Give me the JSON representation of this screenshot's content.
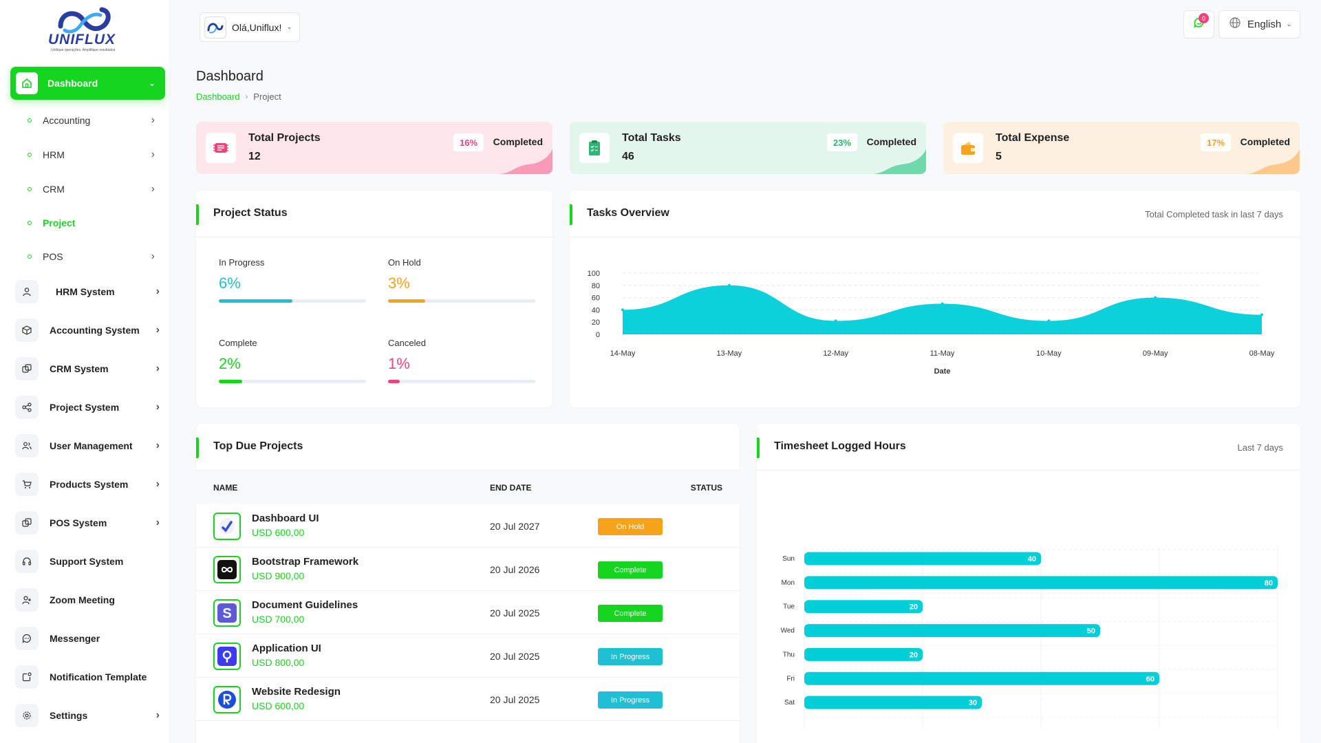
{
  "brand": {
    "name": "UNIFLUX",
    "tagline": "Unifique operações. Amplifique resultados"
  },
  "sidebar": {
    "main": {
      "label": "Dashboard"
    },
    "sub_items": [
      {
        "label": "Accounting"
      },
      {
        "label": "HRM"
      },
      {
        "label": "CRM"
      },
      {
        "label": "Project"
      },
      {
        "label": "POS"
      }
    ],
    "items": [
      {
        "label": "HRM System",
        "icon": "user-icon"
      },
      {
        "label": "Accounting System",
        "icon": "box-icon"
      },
      {
        "label": "CRM System",
        "icon": "layers-icon"
      },
      {
        "label": "Project System",
        "icon": "share-icon"
      },
      {
        "label": "User Management",
        "icon": "users-icon"
      },
      {
        "label": "Products System",
        "icon": "cart-icon"
      },
      {
        "label": "POS System",
        "icon": "layers-icon"
      },
      {
        "label": "Support System",
        "icon": "headset-icon"
      },
      {
        "label": "Zoom Meeting",
        "icon": "user-plus-icon"
      },
      {
        "label": "Messenger",
        "icon": "chat-icon"
      },
      {
        "label": "Notification Template",
        "icon": "notification-icon"
      },
      {
        "label": "Settings",
        "icon": "gear-icon"
      }
    ]
  },
  "topbar": {
    "greeting": "Olá,Uniflux!",
    "notification_count": "0",
    "language": "English"
  },
  "page": {
    "title": "Dashboard",
    "breadcrumb": [
      "Dashboard",
      "Project"
    ]
  },
  "stats": [
    {
      "label": "Total Projects",
      "value": "12",
      "percent": "16%",
      "status": "Completed",
      "color": "#fde7ec",
      "accent": "#f0437a"
    },
    {
      "label": "Total Tasks",
      "value": "46",
      "percent": "23%",
      "status": "Completed",
      "color": "#e3f6ee",
      "accent": "#2bb673"
    },
    {
      "label": "Total Expense",
      "value": "5",
      "percent": "17%",
      "status": "Completed",
      "color": "#fdf0e1",
      "accent": "#f7a21b"
    }
  ],
  "project_status": {
    "title": "Project Status",
    "items": [
      {
        "label": "In Progress",
        "value": "6%",
        "fraction": 0.5,
        "color": "#1ec0d4"
      },
      {
        "label": "On Hold",
        "value": "3%",
        "fraction": 0.25,
        "color": "#f7a21b"
      },
      {
        "label": "Complete",
        "value": "2%",
        "fraction": 0.16,
        "color": "#16d51e"
      },
      {
        "label": "Canceled",
        "value": "1%",
        "fraction": 0.08,
        "color": "#f0437a"
      }
    ]
  },
  "tasks_overview": {
    "title": "Tasks Overview",
    "aside": "Total Completed task in last 7 days"
  },
  "top_due": {
    "title": "Top Due Projects",
    "headers": [
      "NAME",
      "END DATE",
      "STATUS"
    ],
    "rows": [
      {
        "name": "Dashboard UI",
        "price": "USD 600,00",
        "date": "20 Jul 2027",
        "status": "On Hold",
        "status_color": "#f7a21b",
        "logo": "dashboard-ui-logo-icon"
      },
      {
        "name": "Bootstrap Framework",
        "price": "USD 900,00",
        "date": "20 Jul 2026",
        "status": "Complete",
        "status_color": "#16d51e",
        "logo": "bootstrap-logo-icon"
      },
      {
        "name": "Document Guidelines",
        "price": "USD 700,00",
        "date": "20 Jul 2025",
        "status": "Complete",
        "status_color": "#16d51e",
        "logo": "document-logo-icon"
      },
      {
        "name": "Application UI",
        "price": "USD 800,00",
        "date": "20 Jul 2025",
        "status": "In Progress",
        "status_color": "#1ec0d4",
        "logo": "application-logo-icon"
      },
      {
        "name": "Website Redesign",
        "price": "USD 600,00",
        "date": "20 Jul 2025",
        "status": "In Progress",
        "status_color": "#1ec0d4",
        "logo": "website-logo-icon"
      }
    ]
  },
  "timesheet": {
    "title": "Timesheet Logged Hours",
    "aside": "Last 7 days"
  },
  "chart_data": [
    {
      "type": "area",
      "x": [
        "14-May",
        "13-May",
        "12-May",
        "11-May",
        "10-May",
        "09-May",
        "08-May"
      ],
      "series": [
        {
          "values": [
            40,
            80,
            22,
            50,
            22,
            60,
            32
          ]
        }
      ],
      "xlabel": "Date",
      "ylabel": "",
      "ylim": [
        0,
        100
      ],
      "yticks": [
        0,
        20,
        40,
        60,
        80,
        100
      ],
      "grid": true,
      "color": "#00cfd8"
    },
    {
      "type": "bar",
      "orientation": "horizontal",
      "categories": [
        "Sun",
        "Mon",
        "Tue",
        "Wed",
        "Thu",
        "Fri",
        "Sat"
      ],
      "values": [
        40,
        80,
        20,
        50,
        20,
        60,
        30
      ],
      "xlim": [
        0,
        80
      ],
      "xticks": [
        0,
        20,
        40,
        60,
        80
      ],
      "grid": true,
      "color": "#00cfd8"
    }
  ]
}
